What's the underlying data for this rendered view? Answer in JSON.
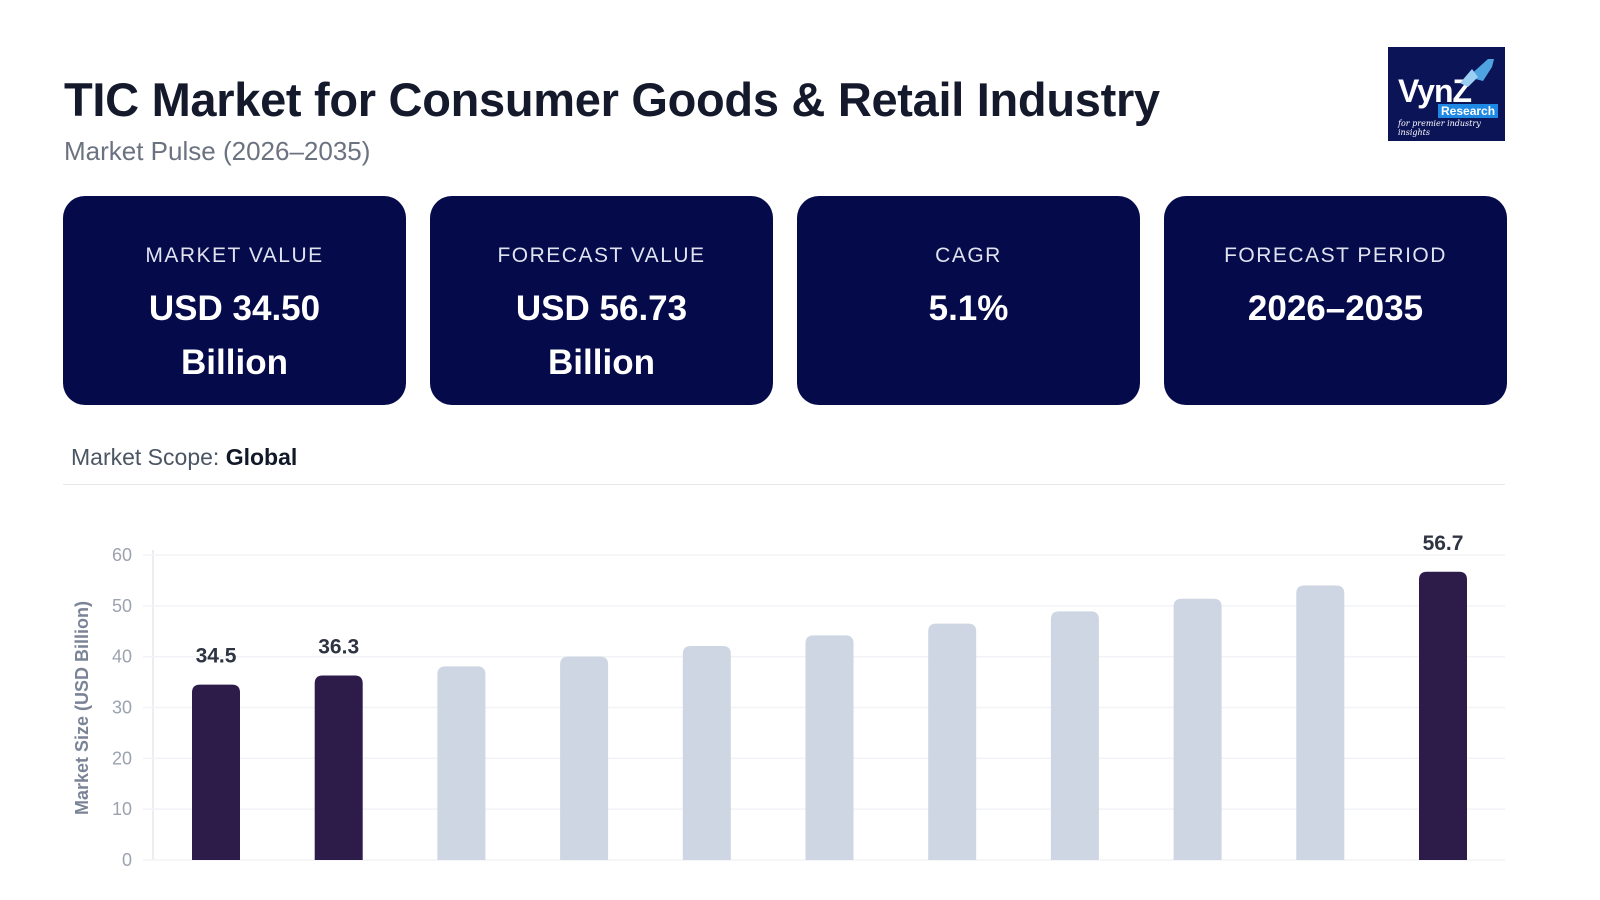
{
  "header": {
    "title": "TIC Market for Consumer Goods & Retail Industry",
    "subtitle": "Market Pulse (2026–2035)"
  },
  "logo": {
    "text": "VynZ",
    "sub": "Research",
    "tagline": "for premier industry insights"
  },
  "cards": [
    {
      "label": "MARKET VALUE",
      "value": "USD 34.50 Billion"
    },
    {
      "label": "FORECAST VALUE",
      "value": "USD 56.73 Billion"
    },
    {
      "label": "CAGR",
      "value": "5.1%"
    },
    {
      "label": "FORECAST PERIOD",
      "value": "2026–2035"
    }
  ],
  "scope": {
    "label": "Market Scope:",
    "value": "Global"
  },
  "colors": {
    "card_bg": "#050a4a",
    "highlight_bar": "#2d1b4a",
    "bar": "#cdd6e2"
  },
  "chart_data": {
    "type": "bar",
    "ylabel": "Market Size (USD Billion)",
    "ylim": [
      0,
      60
    ],
    "yticks": [
      0,
      10,
      20,
      30,
      40,
      50,
      60
    ],
    "grid": true,
    "values": [
      34.5,
      36.3,
      38.1,
      40.0,
      42.1,
      44.2,
      46.5,
      48.9,
      51.4,
      54.0,
      56.7
    ],
    "highlighted": [
      0,
      1,
      10
    ],
    "data_labels": [
      "34.5",
      "36.3",
      "",
      "",
      "",
      "",
      "",
      "",
      "",
      "",
      "56.7"
    ]
  }
}
